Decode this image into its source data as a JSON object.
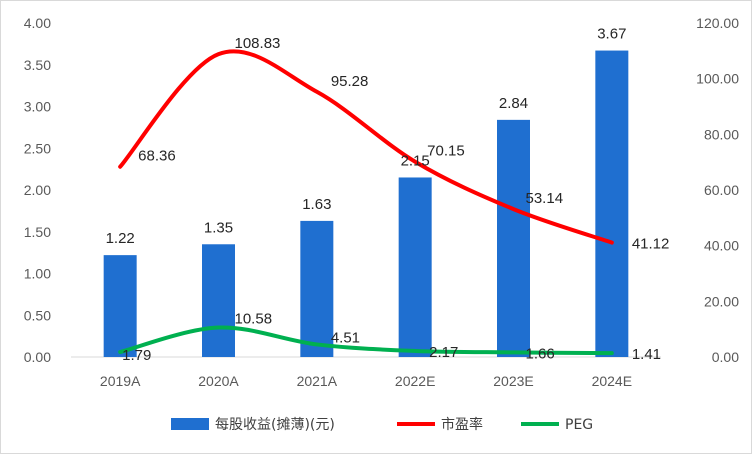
{
  "chart_data": {
    "type": "bar-line-combo",
    "categories": [
      "2019A",
      "2020A",
      "2021A",
      "2022E",
      "2023E",
      "2024E"
    ],
    "series": [
      {
        "name": "每股收益(摊薄)(元)",
        "type": "bar",
        "axis": "left",
        "color": "#1f6fd0",
        "values": [
          1.22,
          1.35,
          1.63,
          2.15,
          2.84,
          3.67
        ],
        "labels": [
          "1.22",
          "1.35",
          "1.63",
          "2.15",
          "2.84",
          "3.67"
        ]
      },
      {
        "name": "市盈率",
        "type": "line",
        "axis": "right",
        "color": "#ff0000",
        "values": [
          68.36,
          108.83,
          95.28,
          70.15,
          53.14,
          41.12
        ],
        "labels": [
          "68.36",
          "108.83",
          "95.28",
          "70.15",
          "53.14",
          "41.12"
        ]
      },
      {
        "name": "PEG",
        "type": "line",
        "axis": "right",
        "color": "#00b050",
        "values": [
          1.79,
          10.58,
          4.51,
          2.17,
          1.66,
          1.41
        ],
        "labels": [
          "1.79",
          "10.58",
          "4.51",
          "2.17",
          "1.66",
          "1.41"
        ]
      }
    ],
    "y_left": {
      "min": 0,
      "max": 4.0,
      "ticks": [
        "0.00",
        "0.50",
        "1.00",
        "1.50",
        "2.00",
        "2.50",
        "3.00",
        "3.50",
        "4.00"
      ]
    },
    "y_right": {
      "min": 0,
      "max": 120,
      "ticks": [
        "0.00",
        "20.00",
        "40.00",
        "60.00",
        "80.00",
        "100.00",
        "120.00"
      ]
    },
    "grid": false,
    "legend": "bottom"
  }
}
